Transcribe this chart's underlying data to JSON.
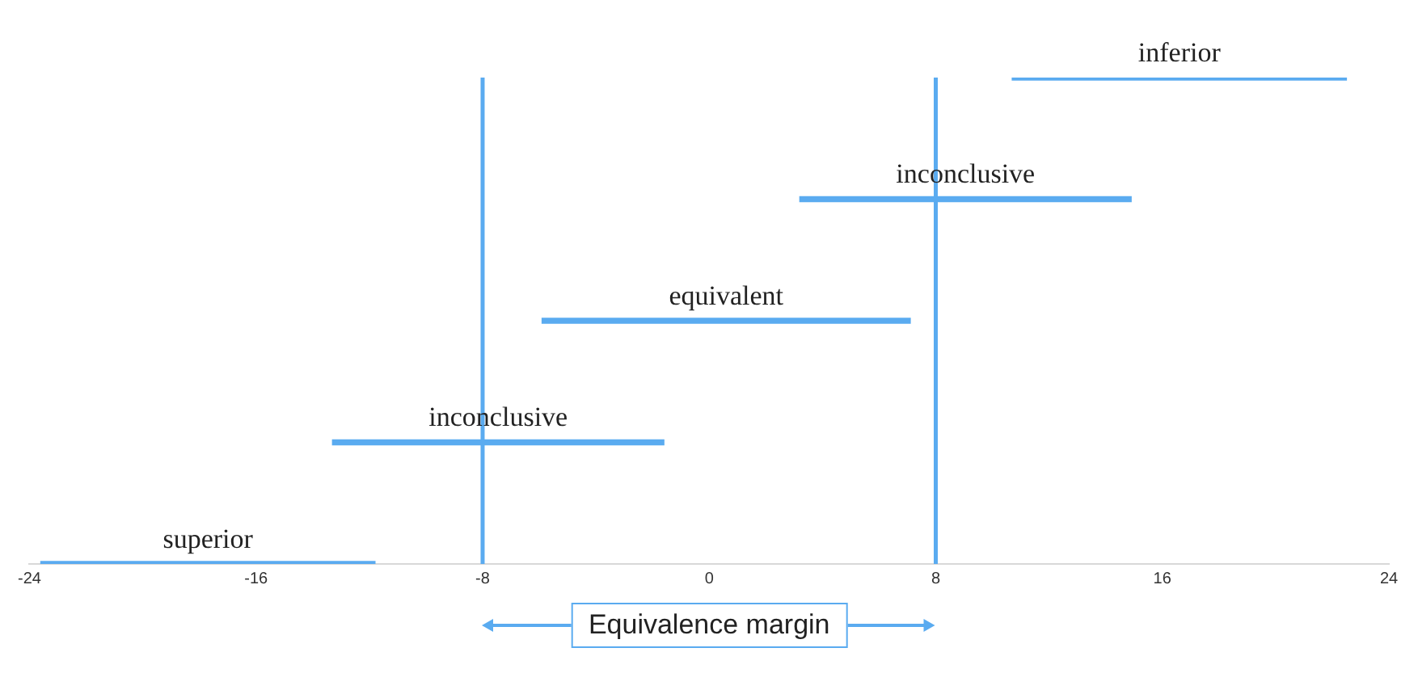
{
  "chart_data": {
    "type": "bar",
    "orientation": "horizontal",
    "categories": [
      "inferior",
      "inconclusive",
      "equivalent",
      "inconclusive",
      "superior"
    ],
    "base": [
      10.7,
      3.2,
      -5.9,
      -13.3,
      -23.6
    ],
    "values": [
      11.8,
      11.7,
      13.0,
      11.7,
      11.8
    ],
    "color": "#5aabf0",
    "xlim": [
      -24,
      24
    ],
    "xticks": [
      -24,
      -16,
      -8,
      0,
      8,
      16,
      24
    ],
    "tick_labels": "x",
    "grid": false,
    "legend": false,
    "ref_lines": [
      {
        "axis": "x",
        "value": -8
      },
      {
        "axis": "x",
        "value": 8
      }
    ],
    "annotations": [
      "Equivalence margin"
    ]
  }
}
